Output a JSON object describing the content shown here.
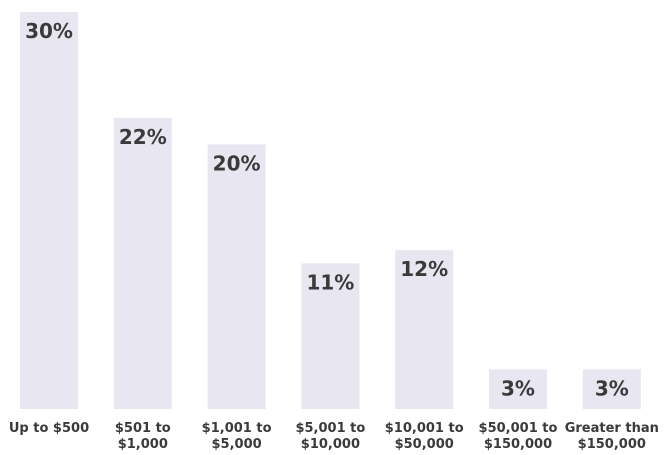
{
  "chart_data": {
    "type": "bar",
    "categories": [
      [
        "Up to $500"
      ],
      [
        "$501 to",
        "$1,000"
      ],
      [
        "$1,001 to",
        "$5,000"
      ],
      [
        "$5,001 to",
        "$10,000"
      ],
      [
        "$10,001 to",
        "$50,000"
      ],
      [
        "$50,001 to",
        "$150,000"
      ],
      [
        "Greater than",
        "$150,000"
      ]
    ],
    "values": [
      30,
      22,
      20,
      11,
      12,
      3,
      3
    ],
    "value_labels": [
      "30%",
      "22%",
      "20%",
      "11%",
      "12%",
      "3%",
      "3%"
    ],
    "title": "",
    "xlabel": "",
    "ylabel": "",
    "ylim": [
      0,
      30
    ],
    "grid": false,
    "legend": "none",
    "colors": {
      "bar": "#e8e6f0",
      "text": "#3a3a3a"
    }
  }
}
